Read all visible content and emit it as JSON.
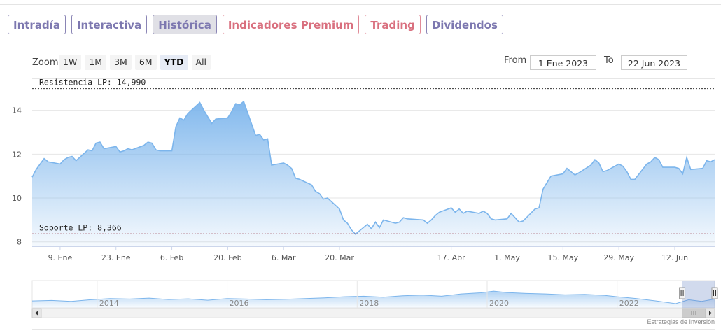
{
  "tabs": [
    {
      "label": "Intradía",
      "style": "normal"
    },
    {
      "label": "Interactiva",
      "style": "normal"
    },
    {
      "label": "Histórica",
      "style": "active"
    },
    {
      "label": "Indicadores Premium",
      "style": "premium"
    },
    {
      "label": "Trading",
      "style": "premium"
    },
    {
      "label": "Dividendos",
      "style": "normal"
    }
  ],
  "zoom": {
    "label": "Zoom",
    "options": [
      "1W",
      "1M",
      "3M",
      "6M",
      "YTD",
      "All"
    ],
    "selected": "YTD"
  },
  "range": {
    "from_label": "From",
    "from_value": "1 Ene 2023",
    "to_label": "To",
    "to_value": "22 Jun 2023"
  },
  "credits": "Estrategias de Inversión",
  "chart_data": {
    "type": "area",
    "ylim": [
      7.8,
      15.2
    ],
    "y_ticks": [
      8,
      10,
      12,
      14
    ],
    "y_tick_labels": [
      "8",
      "10",
      "12",
      "14"
    ],
    "x_range": [
      "2023-01-02",
      "2023-06-22"
    ],
    "x_ticks": [
      {
        "date": "2023-01-09",
        "label": "9. Ene"
      },
      {
        "date": "2023-01-23",
        "label": "23. Ene"
      },
      {
        "date": "2023-02-06",
        "label": "6. Feb"
      },
      {
        "date": "2023-02-20",
        "label": "20. Feb"
      },
      {
        "date": "2023-03-06",
        "label": "6. Mar"
      },
      {
        "date": "2023-03-20",
        "label": "20. Mar"
      },
      {
        "date": "2023-04-17",
        "label": "17. Abr"
      },
      {
        "date": "2023-05-01",
        "label": "1. May"
      },
      {
        "date": "2023-05-15",
        "label": "15. May"
      },
      {
        "date": "2023-05-29",
        "label": "29. May"
      },
      {
        "date": "2023-06-12",
        "label": "12. Jun"
      }
    ],
    "plot_lines": [
      {
        "label": "Resistencia LP: 14,990",
        "value": 14.99,
        "color": "#333333"
      },
      {
        "label": "Soporte LP: 8,366",
        "value": 8.366,
        "color": "#8b1a2b"
      }
    ],
    "series": [
      {
        "color": "#7cb5ec",
        "points": [
          [
            "2023-01-02",
            10.95
          ],
          [
            "2023-01-03",
            11.3
          ],
          [
            "2023-01-04",
            11.55
          ],
          [
            "2023-01-05",
            11.8
          ],
          [
            "2023-01-06",
            11.65
          ],
          [
            "2023-01-09",
            11.55
          ],
          [
            "2023-01-10",
            11.75
          ],
          [
            "2023-01-11",
            11.85
          ],
          [
            "2023-01-12",
            11.9
          ],
          [
            "2023-01-13",
            11.7
          ],
          [
            "2023-01-16",
            12.2
          ],
          [
            "2023-01-17",
            12.15
          ],
          [
            "2023-01-18",
            12.5
          ],
          [
            "2023-01-19",
            12.55
          ],
          [
            "2023-01-20",
            12.25
          ],
          [
            "2023-01-23",
            12.35
          ],
          [
            "2023-01-24",
            12.1
          ],
          [
            "2023-01-25",
            12.15
          ],
          [
            "2023-01-26",
            12.25
          ],
          [
            "2023-01-27",
            12.2
          ],
          [
            "2023-01-30",
            12.4
          ],
          [
            "2023-01-31",
            12.55
          ],
          [
            "2023-02-01",
            12.5
          ],
          [
            "2023-02-02",
            12.2
          ],
          [
            "2023-02-03",
            12.15
          ],
          [
            "2023-02-06",
            12.15
          ],
          [
            "2023-02-07",
            13.25
          ],
          [
            "2023-02-08",
            13.65
          ],
          [
            "2023-02-09",
            13.55
          ],
          [
            "2023-02-10",
            13.85
          ],
          [
            "2023-02-13",
            14.35
          ],
          [
            "2023-02-14",
            14.0
          ],
          [
            "2023-02-15",
            13.7
          ],
          [
            "2023-02-16",
            13.4
          ],
          [
            "2023-02-17",
            13.6
          ],
          [
            "2023-02-20",
            13.65
          ],
          [
            "2023-02-21",
            13.95
          ],
          [
            "2023-02-22",
            14.3
          ],
          [
            "2023-02-23",
            14.25
          ],
          [
            "2023-02-24",
            14.4
          ],
          [
            "2023-02-27",
            12.85
          ],
          [
            "2023-02-28",
            12.9
          ],
          [
            "2023-03-01",
            12.65
          ],
          [
            "2023-03-02",
            12.7
          ],
          [
            "2023-03-03",
            11.5
          ],
          [
            "2023-03-06",
            11.6
          ],
          [
            "2023-03-07",
            11.5
          ],
          [
            "2023-03-08",
            11.35
          ],
          [
            "2023-03-09",
            10.9
          ],
          [
            "2023-03-10",
            10.85
          ],
          [
            "2023-03-13",
            10.6
          ],
          [
            "2023-03-14",
            10.3
          ],
          [
            "2023-03-15",
            10.2
          ],
          [
            "2023-03-16",
            9.95
          ],
          [
            "2023-03-17",
            10.0
          ],
          [
            "2023-03-20",
            9.5
          ],
          [
            "2023-03-21",
            9.0
          ],
          [
            "2023-03-22",
            8.85
          ],
          [
            "2023-03-23",
            8.55
          ],
          [
            "2023-03-24",
            8.35
          ],
          [
            "2023-03-27",
            8.8
          ],
          [
            "2023-03-28",
            8.6
          ],
          [
            "2023-03-29",
            8.9
          ],
          [
            "2023-03-30",
            8.65
          ],
          [
            "2023-03-31",
            9.0
          ],
          [
            "2023-04-03",
            8.85
          ],
          [
            "2023-04-04",
            8.9
          ],
          [
            "2023-04-05",
            9.1
          ],
          [
            "2023-04-06",
            9.05
          ],
          [
            "2023-04-10",
            9.0
          ],
          [
            "2023-04-11",
            8.85
          ],
          [
            "2023-04-12",
            9.0
          ],
          [
            "2023-04-13",
            9.2
          ],
          [
            "2023-04-14",
            9.35
          ],
          [
            "2023-04-17",
            9.55
          ],
          [
            "2023-04-18",
            9.35
          ],
          [
            "2023-04-19",
            9.5
          ],
          [
            "2023-04-20",
            9.3
          ],
          [
            "2023-04-21",
            9.4
          ],
          [
            "2023-04-24",
            9.3
          ],
          [
            "2023-04-25",
            9.4
          ],
          [
            "2023-04-26",
            9.3
          ],
          [
            "2023-04-27",
            9.05
          ],
          [
            "2023-04-28",
            9.0
          ],
          [
            "2023-05-01",
            9.05
          ],
          [
            "2023-05-02",
            9.3
          ],
          [
            "2023-05-03",
            9.1
          ],
          [
            "2023-05-04",
            8.9
          ],
          [
            "2023-05-05",
            8.95
          ],
          [
            "2023-05-08",
            9.5
          ],
          [
            "2023-05-09",
            9.55
          ],
          [
            "2023-05-10",
            10.4
          ],
          [
            "2023-05-11",
            10.7
          ],
          [
            "2023-05-12",
            11.0
          ],
          [
            "2023-05-15",
            11.1
          ],
          [
            "2023-05-16",
            11.35
          ],
          [
            "2023-05-17",
            11.2
          ],
          [
            "2023-05-18",
            11.05
          ],
          [
            "2023-05-19",
            11.15
          ],
          [
            "2023-05-22",
            11.5
          ],
          [
            "2023-05-23",
            11.75
          ],
          [
            "2023-05-24",
            11.6
          ],
          [
            "2023-05-25",
            11.2
          ],
          [
            "2023-05-26",
            11.25
          ],
          [
            "2023-05-29",
            11.55
          ],
          [
            "2023-05-30",
            11.45
          ],
          [
            "2023-05-31",
            11.2
          ],
          [
            "2023-06-01",
            10.85
          ],
          [
            "2023-06-02",
            10.85
          ],
          [
            "2023-06-05",
            11.55
          ],
          [
            "2023-06-06",
            11.65
          ],
          [
            "2023-06-07",
            11.85
          ],
          [
            "2023-06-08",
            11.75
          ],
          [
            "2023-06-09",
            11.4
          ],
          [
            "2023-06-12",
            11.4
          ],
          [
            "2023-06-13",
            11.35
          ],
          [
            "2023-06-14",
            11.1
          ],
          [
            "2023-06-15",
            11.85
          ],
          [
            "2023-06-16",
            11.3
          ],
          [
            "2023-06-19",
            11.35
          ],
          [
            "2023-06-20",
            11.7
          ],
          [
            "2023-06-21",
            11.65
          ],
          [
            "2023-06-22",
            11.75
          ]
        ]
      }
    ]
  },
  "navigator": {
    "year_labels": [
      "2014",
      "2016",
      "2018",
      "2020",
      "2022"
    ],
    "year_range": [
      2013,
      2023.5
    ],
    "values": [
      [
        2013.0,
        0.3
      ],
      [
        2013.3,
        0.32
      ],
      [
        2013.6,
        0.28
      ],
      [
        2013.9,
        0.35
      ],
      [
        2014.2,
        0.4
      ],
      [
        2014.5,
        0.38
      ],
      [
        2014.8,
        0.42
      ],
      [
        2015.1,
        0.36
      ],
      [
        2015.4,
        0.39
      ],
      [
        2015.7,
        0.33
      ],
      [
        2016.0,
        0.4
      ],
      [
        2016.3,
        0.38
      ],
      [
        2016.6,
        0.35
      ],
      [
        2016.9,
        0.37
      ],
      [
        2017.2,
        0.4
      ],
      [
        2017.5,
        0.43
      ],
      [
        2017.8,
        0.48
      ],
      [
        2018.1,
        0.5
      ],
      [
        2018.4,
        0.46
      ],
      [
        2018.7,
        0.52
      ],
      [
        2019.0,
        0.55
      ],
      [
        2019.3,
        0.5
      ],
      [
        2019.6,
        0.6
      ],
      [
        2019.9,
        0.65
      ],
      [
        2020.1,
        0.72
      ],
      [
        2020.3,
        0.66
      ],
      [
        2020.6,
        0.62
      ],
      [
        2020.9,
        0.6
      ],
      [
        2021.2,
        0.56
      ],
      [
        2021.5,
        0.58
      ],
      [
        2021.8,
        0.54
      ],
      [
        2022.0,
        0.48
      ],
      [
        2022.3,
        0.4
      ],
      [
        2022.6,
        0.3
      ],
      [
        2022.9,
        0.18
      ],
      [
        2023.1,
        0.35
      ],
      [
        2023.3,
        0.28
      ],
      [
        2023.5,
        0.38
      ]
    ],
    "selected_years": [
      2023.0,
      2023.5
    ]
  }
}
